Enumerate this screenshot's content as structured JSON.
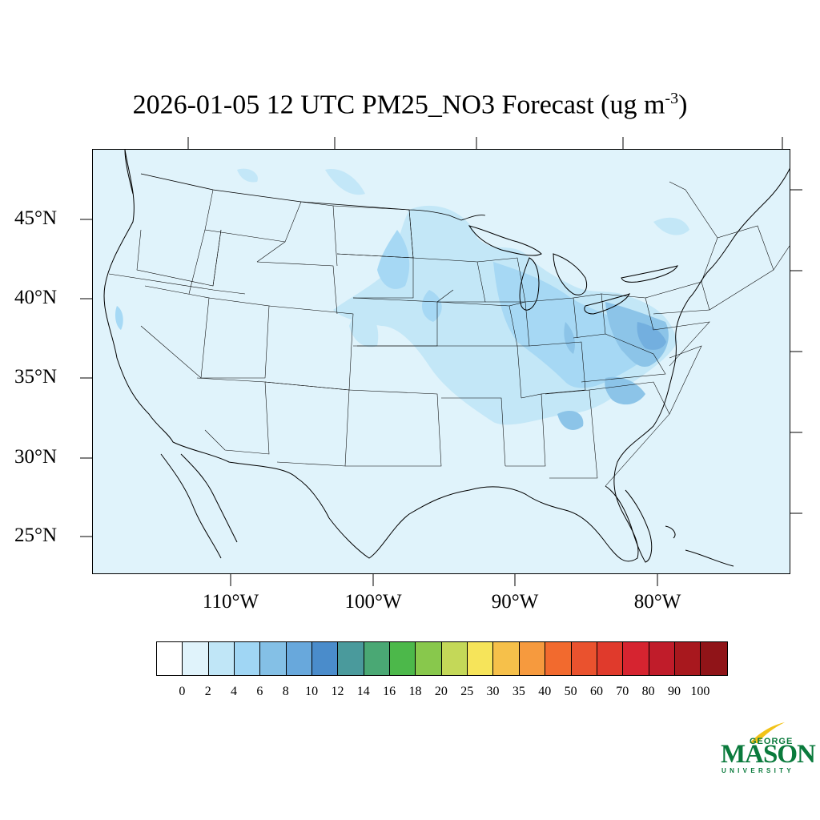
{
  "title": {
    "main": "2026-01-05 12 UTC PM25_NO3 Forecast (ug m",
    "superscript": "-3",
    "close": ")"
  },
  "axes": {
    "lat_labels": [
      "45°N",
      "40°N",
      "35°N",
      "30°N",
      "25°N"
    ],
    "lon_labels": [
      "110°W",
      "100°W",
      "90°W",
      "80°W"
    ]
  },
  "colorbar": {
    "levels": [
      "0",
      "2",
      "4",
      "6",
      "8",
      "10",
      "12",
      "14",
      "16",
      "18",
      "20",
      "25",
      "30",
      "35",
      "40",
      "50",
      "60",
      "70",
      "80",
      "90",
      "100"
    ],
    "colors": [
      "#ffffff",
      "#e0f3fb",
      "#c0e6f7",
      "#a0d6f4",
      "#84c0e6",
      "#68a8dc",
      "#4a8ccb",
      "#4a9a9c",
      "#4aa874",
      "#4cb84a",
      "#88c84c",
      "#c4d858",
      "#f6e45a",
      "#f6c04a",
      "#f69a3e",
      "#f26a2e",
      "#ea522e",
      "#e03a2c",
      "#d62430",
      "#c01c2a",
      "#a8181e",
      "#901418"
    ]
  },
  "logo": {
    "line1": "GEORGE",
    "line2": "MASON",
    "line3": "UNIVERSITY"
  }
}
